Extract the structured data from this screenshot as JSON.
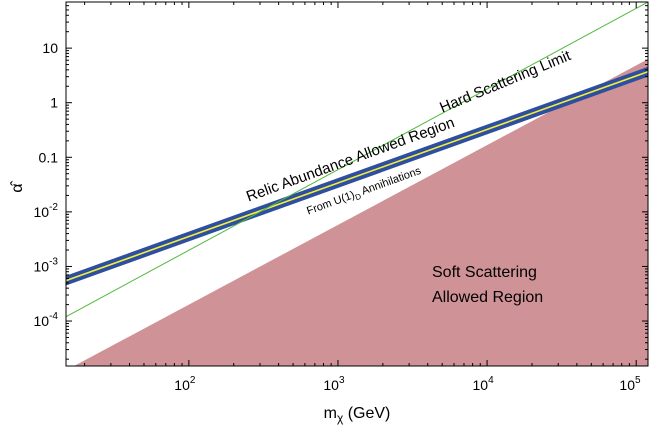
{
  "chart_data": {
    "type": "area",
    "xlabel": "m",
    "xlabel_sub": "χ",
    "xlabel_unit": " (GeV)",
    "ylabel": "α̂",
    "x_scale": "log",
    "y_scale": "log",
    "xlim": [
      15,
      120000
    ],
    "ylim": [
      1.5e-05,
      70
    ],
    "grid": false,
    "x_ticks": [
      {
        "value": 100,
        "base": "10",
        "exp": "2"
      },
      {
        "value": 1000,
        "base": "10",
        "exp": "3"
      },
      {
        "value": 10000,
        "base": "10",
        "exp": "4"
      },
      {
        "value": 100000,
        "base": "10",
        "exp": "5"
      }
    ],
    "y_ticks": [
      {
        "value": 10,
        "text": "10"
      },
      {
        "value": 1,
        "text": "1"
      },
      {
        "value": 0.1,
        "text": "0.1"
      },
      {
        "value": 0.01,
        "base": "10",
        "exp": "-2"
      },
      {
        "value": 0.001,
        "base": "10",
        "exp": "-3"
      },
      {
        "value": 0.0001,
        "base": "10",
        "exp": "-4"
      }
    ],
    "series": [
      {
        "kind": "area",
        "color": "#cf9297",
        "boundary": [
          [
            17,
            1.5e-05
          ],
          [
            120000,
            6.3
          ]
        ],
        "fill": "below"
      },
      {
        "kind": "band",
        "color": "#2e4ea0",
        "center": [
          [
            15,
            0.00055
          ],
          [
            120000,
            3.7
          ]
        ],
        "halfwidth_decades": 0.09
      },
      {
        "kind": "line",
        "color": "#f2ef3a",
        "points": [
          [
            15,
            0.00055
          ],
          [
            120000,
            3.7
          ]
        ]
      },
      {
        "kind": "line",
        "color": "#4fb93c",
        "points": [
          [
            15,
            0.00012
          ],
          [
            120000,
            70
          ]
        ]
      }
    ],
    "annotations": {
      "hard_scattering": "Hard Scattering Limit",
      "relic_abundance": "Relic Abundance Allowed Region",
      "from_prefix": "From U(1)",
      "from_sub": "D",
      "from_suffix": " Annihilations",
      "soft_line1": "Soft Scattering",
      "soft_line2": "Allowed Region"
    }
  }
}
